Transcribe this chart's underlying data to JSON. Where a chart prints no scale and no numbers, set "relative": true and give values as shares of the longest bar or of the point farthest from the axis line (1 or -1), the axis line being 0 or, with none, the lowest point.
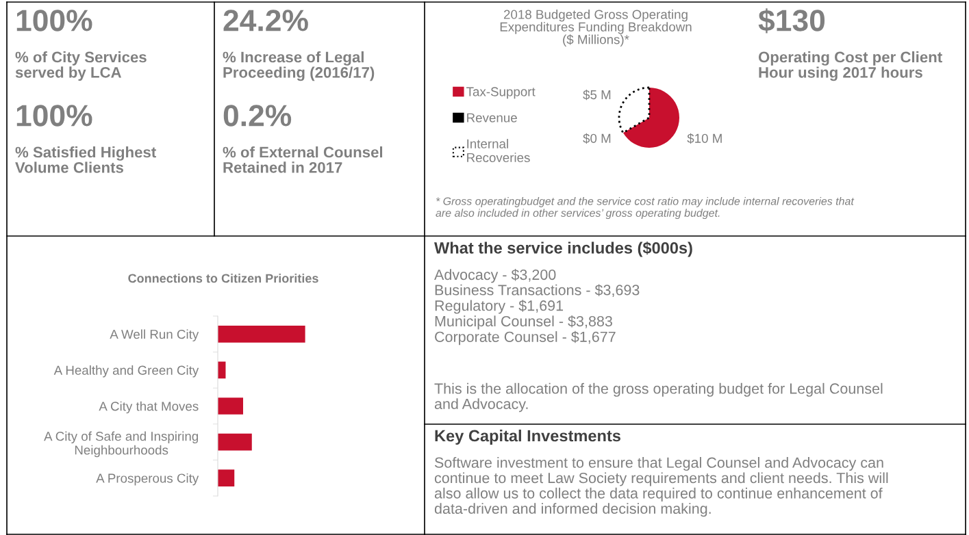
{
  "chart_data": [
    {
      "type": "other",
      "annotations": [
        "100%",
        "% of City Services\nserved by LCA",
        "100%",
        "% Satisfied Highest\nVolume Clients"
      ]
    },
    {
      "type": "other",
      "annotations": [
        "24.2%",
        "% Increase of Legal\nProceeding (2016/17)",
        "0.2%",
        "% of External Counsel\nRetained in 2017"
      ]
    },
    {
      "type": "pie",
      "title": "2018 Budgeted Gross Operating\nExpenditures Funding Breakdown\n($ Millions)*",
      "categories": [
        "Tax-Support",
        "Revenue",
        "Internal\nRecoveries"
      ],
      "values": [
        10,
        0,
        5
      ],
      "colors": [
        "#c8102e",
        "#000000",
        "#ffffff"
      ],
      "value_labels": [
        "$10 M",
        "$0 M",
        "$5 M"
      ],
      "legend": "left",
      "annotations": [
        "* Gross operatingbudget and the service cost ratio may include internal recoveries that\nare also included in other services’ gross operating budget."
      ]
    },
    {
      "type": "other",
      "annotations": [
        "$130",
        "Operating Cost per Client\nHour using 2017 hours"
      ]
    },
    {
      "type": "bar",
      "orientation": "horizontal",
      "relative": true,
      "title": "Connections to Citizen Priorities",
      "categories": [
        "A Well Run City",
        "A Healthy and Green City",
        "A City that Moves",
        "A City of Safe and Inspiring\nNeighbourhoods",
        "A Prosperous City"
      ],
      "values": [
        1,
        0.09,
        0.29,
        0.39,
        0.19
      ],
      "color": "#c8102e"
    },
    {
      "type": "other",
      "title": "What the service includes ($000s)",
      "annotations": [
        "Advocacy - $3,200\nBusiness Transactions - $3,693\nRegulatory - $1,691\nMunicipal Counsel - $3,883\nCorporate Counsel - $1,677",
        "This is the allocation of the gross operating budget for Legal Counsel\nand Advocacy."
      ]
    },
    {
      "type": "other",
      "title": "Key Capital Investments",
      "annotations": [
        "Software investment to ensure that Legal Counsel and Advocacy can\ncontinue to meet Law Society requirements and client needs. This will\nalso allow us to collect the data required to continue enhancement of\ndata-driven and informed decision making."
      ]
    }
  ]
}
